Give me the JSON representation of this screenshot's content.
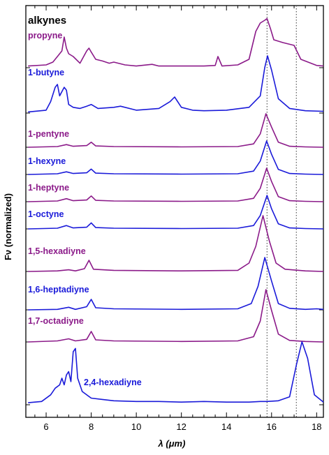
{
  "chart_data": {
    "type": "line",
    "title": "alkynes",
    "xlabel": "λ (μm)",
    "ylabel": "Fν (normalized)",
    "xlim": [
      5.1,
      18.3
    ],
    "x_ticks": [
      6,
      8,
      10,
      12,
      14,
      16,
      18
    ],
    "grid": false,
    "reference_lines_x": [
      15.8,
      17.1
    ],
    "colors": {
      "purple": "#8B1A89",
      "blue": "#1A1AD9"
    },
    "series": [
      {
        "name": "propyne",
        "color": "#8B1A89",
        "x": [
          5.2,
          6.0,
          6.3,
          6.5,
          6.7,
          6.8,
          6.9,
          7.0,
          7.2,
          7.5,
          7.8,
          7.9,
          8.0,
          8.2,
          8.5,
          8.8,
          9.0,
          9.5,
          10.0,
          10.7,
          11.0,
          12.0,
          13.0,
          13.5,
          13.62,
          13.8,
          14.5,
          15.0,
          15.3,
          15.5,
          15.7,
          15.8,
          15.95,
          16.1,
          16.5,
          17.0,
          17.3,
          18.0,
          18.3
        ],
        "y": [
          0.03,
          0.05,
          0.1,
          0.2,
          0.3,
          0.55,
          0.35,
          0.25,
          0.2,
          0.08,
          0.3,
          0.35,
          0.28,
          0.15,
          0.12,
          0.08,
          0.1,
          0.05,
          0.03,
          0.06,
          0.03,
          0.03,
          0.03,
          0.04,
          0.2,
          0.03,
          0.05,
          0.15,
          0.65,
          0.8,
          0.85,
          0.88,
          0.7,
          0.5,
          0.45,
          0.4,
          0.15,
          0.04,
          0.03
        ]
      },
      {
        "name": "1-butyne",
        "color": "#1A1AD9",
        "x": [
          5.2,
          6.0,
          6.2,
          6.4,
          6.5,
          6.6,
          6.8,
          6.9,
          7.0,
          7.2,
          7.5,
          7.8,
          8.0,
          8.3,
          9.0,
          9.3,
          10.0,
          11.0,
          11.5,
          11.7,
          12.0,
          12.5,
          13.0,
          14.0,
          15.0,
          15.5,
          15.7,
          15.82,
          16.0,
          16.3,
          16.8,
          17.5,
          18.3
        ],
        "y": [
          0.02,
          0.05,
          0.2,
          0.45,
          0.5,
          0.3,
          0.45,
          0.4,
          0.15,
          0.1,
          0.08,
          0.12,
          0.15,
          0.08,
          0.1,
          0.12,
          0.05,
          0.08,
          0.2,
          0.28,
          0.1,
          0.05,
          0.04,
          0.05,
          0.1,
          0.3,
          0.8,
          1.0,
          0.75,
          0.25,
          0.08,
          0.04,
          0.03
        ]
      },
      {
        "name": "1-pentyne",
        "color": "#8B1A89",
        "x": [
          5.2,
          6.5,
          6.9,
          7.2,
          7.8,
          8.0,
          8.2,
          9.0,
          12.0,
          14.5,
          15.2,
          15.5,
          15.75,
          16.0,
          16.3,
          16.8,
          17.5,
          18.3
        ],
        "y": [
          0.0,
          0.02,
          0.08,
          0.03,
          0.05,
          0.15,
          0.04,
          0.02,
          0.01,
          0.02,
          0.1,
          0.4,
          1.0,
          0.6,
          0.15,
          0.03,
          0.01,
          0.0
        ]
      },
      {
        "name": "1-hexyne",
        "color": "#1A1AD9",
        "x": [
          5.2,
          6.5,
          6.9,
          7.2,
          7.8,
          8.0,
          8.2,
          9.0,
          12.0,
          14.5,
          15.2,
          15.5,
          15.78,
          16.0,
          16.3,
          16.8,
          17.5,
          18.3
        ],
        "y": [
          0.0,
          0.02,
          0.08,
          0.03,
          0.05,
          0.16,
          0.04,
          0.02,
          0.01,
          0.02,
          0.1,
          0.4,
          1.0,
          0.6,
          0.15,
          0.03,
          0.01,
          0.0
        ]
      },
      {
        "name": "1-heptyne",
        "color": "#8B1A89",
        "x": [
          5.2,
          6.5,
          6.9,
          7.2,
          7.8,
          8.0,
          8.2,
          9.0,
          12.0,
          14.5,
          15.2,
          15.5,
          15.78,
          16.0,
          16.3,
          16.8,
          17.5,
          18.3
        ],
        "y": [
          0.0,
          0.02,
          0.09,
          0.03,
          0.05,
          0.17,
          0.04,
          0.02,
          0.01,
          0.02,
          0.1,
          0.4,
          1.0,
          0.6,
          0.15,
          0.03,
          0.01,
          0.0
        ]
      },
      {
        "name": "1-octyne",
        "color": "#1A1AD9",
        "x": [
          5.2,
          6.5,
          6.9,
          7.2,
          7.8,
          8.0,
          8.2,
          9.0,
          12.0,
          14.5,
          15.2,
          15.5,
          15.8,
          16.0,
          16.3,
          16.8,
          17.5,
          18.3
        ],
        "y": [
          0.0,
          0.02,
          0.1,
          0.03,
          0.05,
          0.18,
          0.04,
          0.02,
          0.01,
          0.02,
          0.1,
          0.4,
          1.0,
          0.6,
          0.15,
          0.03,
          0.01,
          0.0
        ]
      },
      {
        "name": "1,5-hexadiyne",
        "color": "#8B1A89",
        "x": [
          5.2,
          6.5,
          7.0,
          7.3,
          7.7,
          7.9,
          8.1,
          9.0,
          12.0,
          14.5,
          15.0,
          15.3,
          15.62,
          15.9,
          16.2,
          16.6,
          17.5,
          18.3
        ],
        "y": [
          0.0,
          0.01,
          0.03,
          0.01,
          0.05,
          0.2,
          0.04,
          0.02,
          0.01,
          0.02,
          0.15,
          0.45,
          1.0,
          0.55,
          0.15,
          0.04,
          0.01,
          0.0
        ]
      },
      {
        "name": "1,6-heptadiyne",
        "color": "#1A1AD9",
        "x": [
          5.2,
          6.5,
          7.0,
          7.3,
          7.8,
          8.0,
          8.2,
          9.0,
          12.0,
          14.5,
          15.1,
          15.4,
          15.7,
          16.0,
          16.3,
          16.8,
          17.5,
          18.0,
          18.3
        ],
        "y": [
          0.0,
          0.01,
          0.05,
          0.01,
          0.06,
          0.2,
          0.04,
          0.02,
          0.01,
          0.02,
          0.12,
          0.45,
          1.0,
          0.55,
          0.12,
          0.03,
          0.01,
          0.02,
          0.01
        ]
      },
      {
        "name": "1,7-octadiyne",
        "color": "#8B1A89",
        "x": [
          5.2,
          6.5,
          7.0,
          7.3,
          7.8,
          8.0,
          8.2,
          9.0,
          12.0,
          14.5,
          15.2,
          15.5,
          15.75,
          16.0,
          16.3,
          16.8,
          17.5,
          18.3
        ],
        "y": [
          0.0,
          0.02,
          0.06,
          0.02,
          0.05,
          0.2,
          0.04,
          0.02,
          0.01,
          0.02,
          0.1,
          0.4,
          1.0,
          0.6,
          0.15,
          0.03,
          0.01,
          0.0
        ]
      },
      {
        "name": "2,4-hexadiyne",
        "color": "#1A1AD9",
        "x": [
          5.2,
          5.8,
          6.2,
          6.4,
          6.6,
          6.7,
          6.8,
          6.9,
          7.0,
          7.1,
          7.2,
          7.3,
          7.4,
          7.6,
          8.0,
          8.5,
          9.0,
          10.0,
          11.0,
          12.0,
          13.0,
          14.0,
          15.0,
          15.5,
          15.8,
          16.3,
          16.8,
          17.1,
          17.35,
          17.6,
          17.9,
          18.3
        ],
        "y": [
          0.03,
          0.05,
          0.15,
          0.25,
          0.3,
          0.4,
          0.3,
          0.45,
          0.5,
          0.35,
          0.8,
          0.85,
          0.4,
          0.2,
          0.1,
          0.08,
          0.06,
          0.05,
          0.05,
          0.04,
          0.05,
          0.04,
          0.04,
          0.05,
          0.05,
          0.06,
          0.12,
          0.6,
          0.95,
          0.7,
          0.15,
          0.04
        ]
      }
    ]
  }
}
